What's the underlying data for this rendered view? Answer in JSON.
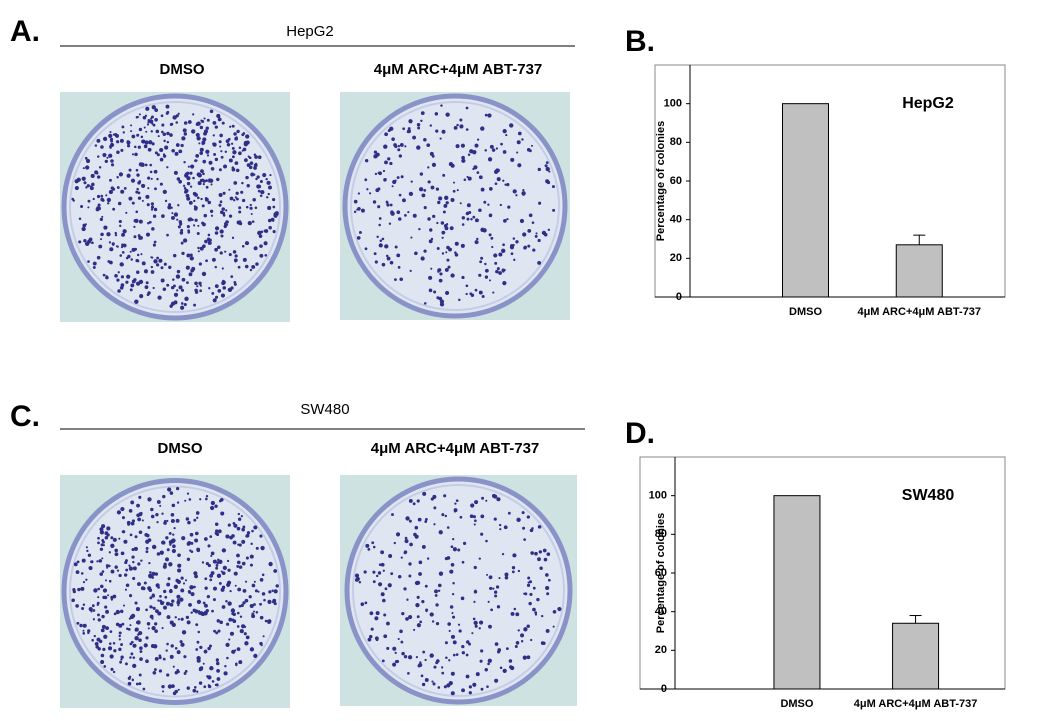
{
  "panels": [
    {
      "label": "A.",
      "cell_line": "HepG2",
      "conditions": [
        "DMSO",
        "4μM ARC+4μM ABT-737"
      ]
    },
    {
      "label": "C.",
      "cell_line": "SW480",
      "conditions": [
        "DMSO",
        "4μM ARC+4μM ABT-737"
      ]
    }
  ],
  "chart_data": [
    {
      "type": "bar",
      "panel_label": "B.",
      "annotation": "HepG2",
      "ylabel": "Percentage of colonies",
      "categories": [
        "DMSO",
        "4μM ARC+4μM ABT-737"
      ],
      "values": [
        100,
        27
      ],
      "errors": [
        0,
        5
      ],
      "color": "#c0c0c0",
      "ylim": [
        0,
        120
      ],
      "yticks": [
        0,
        20,
        40,
        60,
        80,
        100
      ]
    },
    {
      "type": "bar",
      "panel_label": "D.",
      "annotation": "SW480",
      "ylabel": "Percentage of colonies",
      "categories": [
        "DMSO",
        "4μM ARC+4μM ABT-737"
      ],
      "values": [
        100,
        34
      ],
      "errors": [
        0,
        4
      ],
      "color": "#c0c0c0",
      "ylim": [
        0,
        120
      ],
      "yticks": [
        0,
        20,
        40,
        60,
        80,
        100
      ]
    }
  ]
}
